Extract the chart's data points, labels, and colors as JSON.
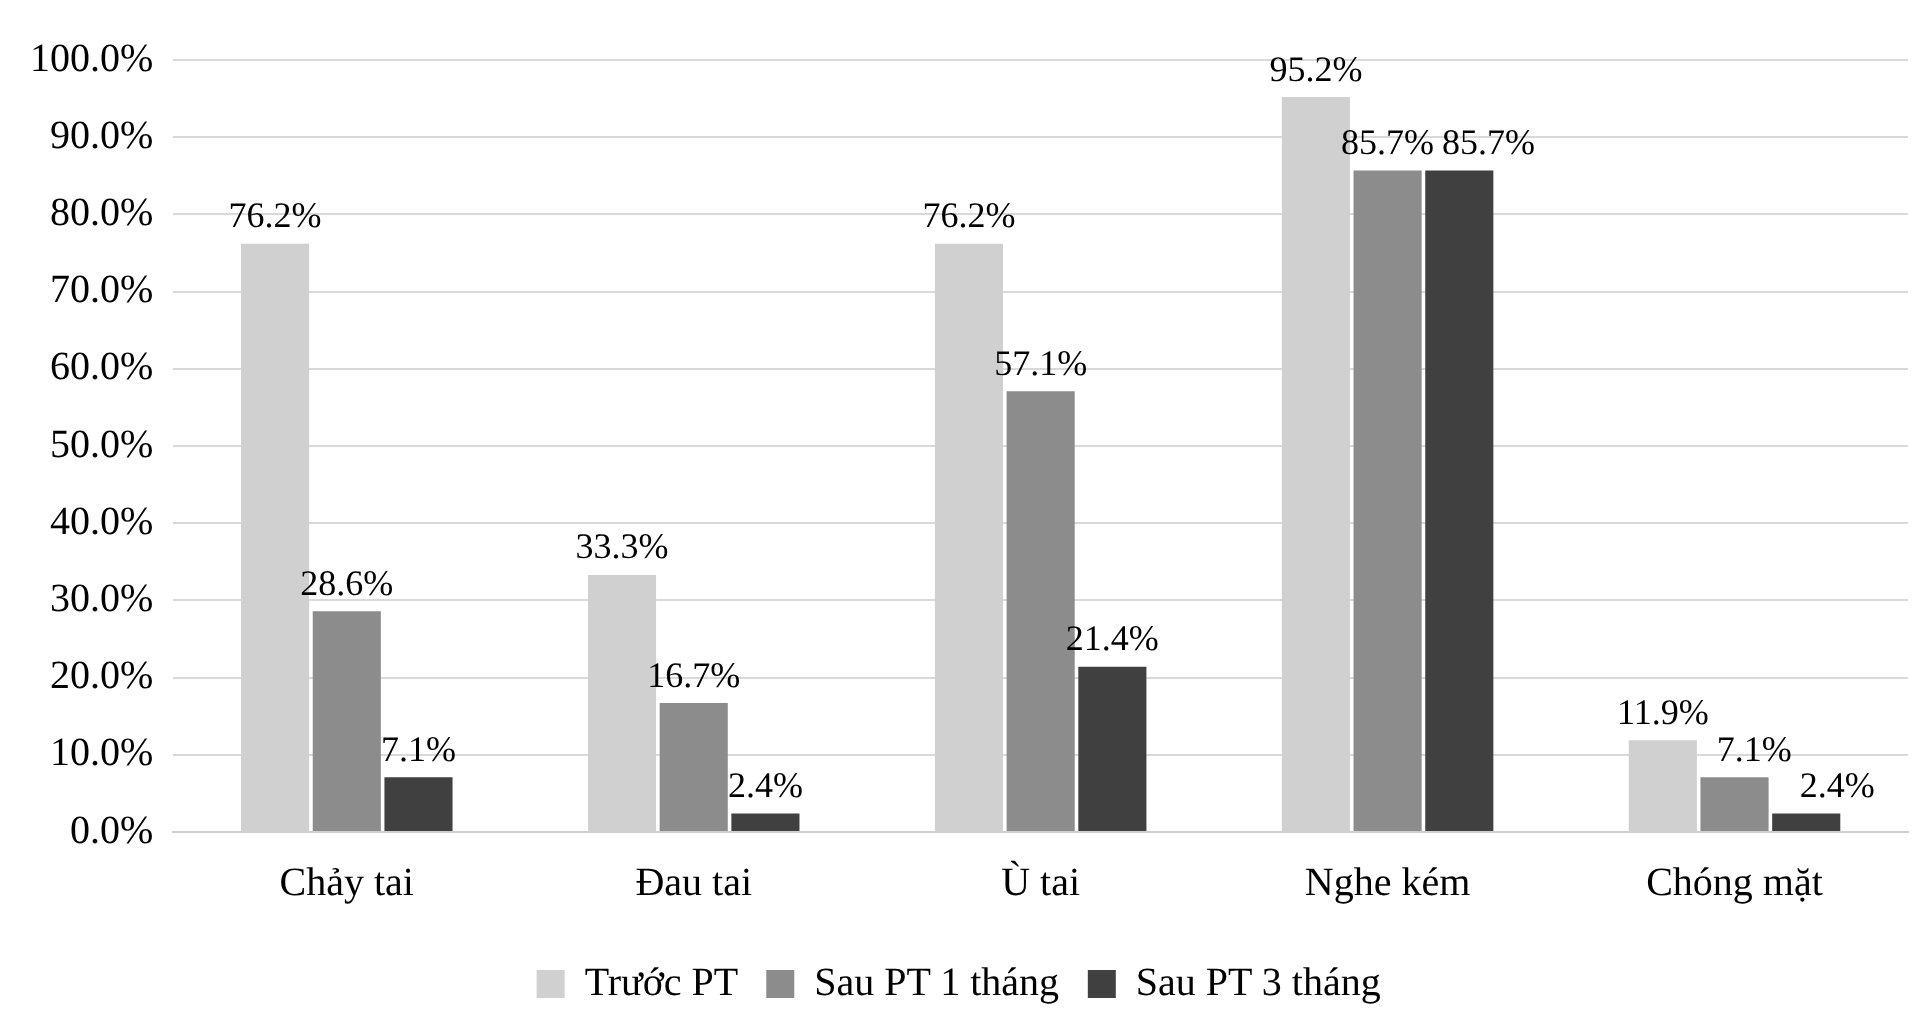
{
  "chart_data": {
    "type": "bar",
    "categories": [
      "Chảy tai",
      "Đau tai",
      "Ù tai",
      "Nghe kém",
      "Chóng mặt"
    ],
    "series": [
      {
        "name": "Trước PT",
        "color": "#d0d0d0",
        "values": [
          76.2,
          33.3,
          76.2,
          95.2,
          11.9
        ]
      },
      {
        "name": "Sau PT 1 tháng",
        "color": "#8c8c8c",
        "values": [
          28.6,
          16.7,
          57.1,
          85.7,
          7.1
        ]
      },
      {
        "name": "Sau PT 3 tháng",
        "color": "#404040",
        "values": [
          7.1,
          2.4,
          21.4,
          85.7,
          2.4
        ]
      }
    ],
    "ylim": [
      0,
      100
    ],
    "yticks": [
      {
        "value": 0,
        "label": "0.0%"
      },
      {
        "value": 10,
        "label": "10.0%"
      },
      {
        "value": 20,
        "label": "20.0%"
      },
      {
        "value": 30,
        "label": "30.0%"
      },
      {
        "value": 40,
        "label": "40.0%"
      },
      {
        "value": 50,
        "label": "50.0%"
      },
      {
        "value": 60,
        "label": "60.0%"
      },
      {
        "value": 70,
        "label": "70.0%"
      },
      {
        "value": 80,
        "label": "80.0%"
      },
      {
        "value": 90,
        "label": "90.0%"
      },
      {
        "value": 100,
        "label": "100.0%"
      }
    ],
    "value_labels": [
      [
        "76.2%",
        "33.3%",
        "76.2%",
        "95.2%",
        "11.9%"
      ],
      [
        "28.6%",
        "16.7%",
        "57.1%",
        "85.7%",
        "7.1%"
      ],
      [
        "7.1%",
        "2.4%",
        "21.4%",
        "85.7%",
        "2.4%"
      ]
    ],
    "grid": "y",
    "legend": "bottom"
  }
}
